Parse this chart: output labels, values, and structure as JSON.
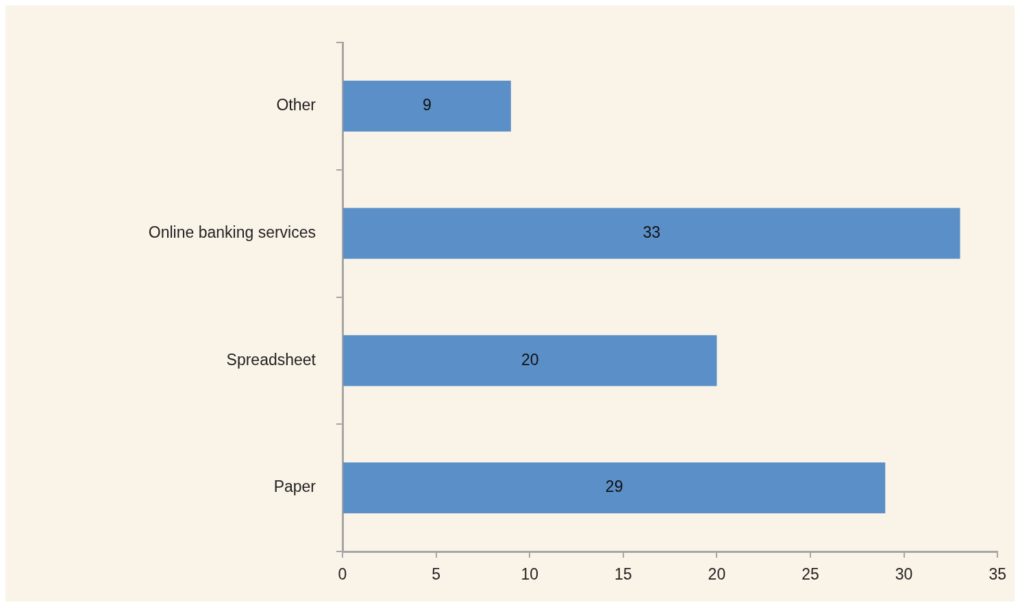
{
  "chart_data": {
    "type": "bar",
    "orientation": "horizontal",
    "categories": [
      "Other",
      "Online banking services",
      "Spreadsheet",
      "Paper"
    ],
    "values": [
      9,
      33,
      20,
      29
    ],
    "color": "#5b8fc7",
    "xlim": [
      0,
      35
    ],
    "xticks": [
      0,
      5,
      10,
      15,
      20,
      25,
      30,
      35
    ],
    "data_labels": true
  }
}
